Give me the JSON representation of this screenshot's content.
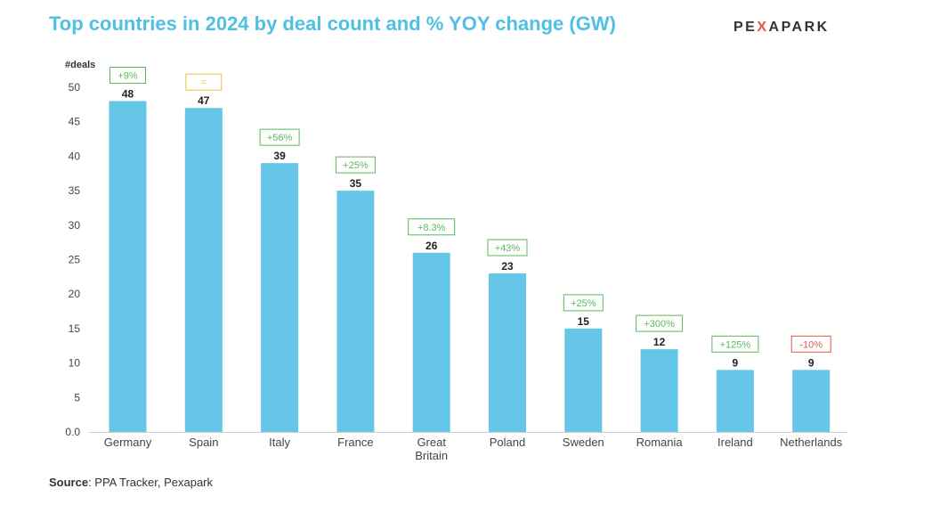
{
  "header": {
    "title": "Top countries in 2024 by deal count and % YOY change (GW)",
    "logo_left": "PE",
    "logo_mark": "X",
    "logo_right": "APARK"
  },
  "footer": {
    "source_label": "Source",
    "source_text": ": PPA Tracker, Pexapark"
  },
  "colors": {
    "bar": "#66C6E8",
    "title": "#4FC0E4",
    "positive": "#5CB85C",
    "neutral": "#E8C341",
    "negative": "#E2574C"
  },
  "chart_data": {
    "type": "bar",
    "title": "Top countries in 2024 by deal count and % YOY change (GW)",
    "ylabel": "#deals",
    "xlabel": "",
    "ylim": [
      0,
      50
    ],
    "yticks": [
      "0.0",
      "5",
      "10",
      "15",
      "20",
      "25",
      "30",
      "35",
      "40",
      "45",
      "50"
    ],
    "categories": [
      "Germany",
      "Spain",
      "Italy",
      "France",
      "Great\nBritain",
      "Poland",
      "Sweden",
      "Romania",
      "Ireland",
      "Netherlands"
    ],
    "values": [
      48,
      47,
      39,
      35,
      26,
      23,
      15,
      12,
      9,
      9
    ],
    "yoy_change": [
      "+9%",
      "=",
      "+56%",
      "+25%",
      "+8.3%",
      "+43%",
      "+25%",
      "+300%",
      "+125%",
      "-10%"
    ],
    "yoy_sentiment": [
      "positive",
      "neutral",
      "positive",
      "positive",
      "positive",
      "positive",
      "positive",
      "positive",
      "positive",
      "negative"
    ]
  }
}
